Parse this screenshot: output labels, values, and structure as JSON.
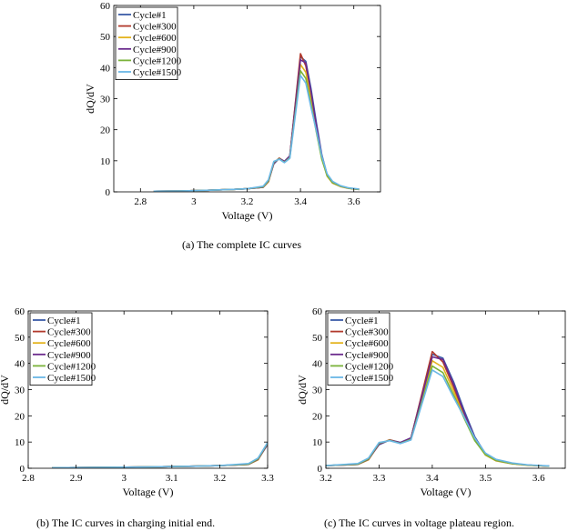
{
  "captions": {
    "a": "(a) The complete IC curves",
    "b": "(b) The IC curves in charging initial end.",
    "c": "(c) The IC curves in voltage plateau region."
  },
  "chart_data": [
    {
      "id": "a",
      "type": "line",
      "xlabel": "Voltage (V)",
      "ylabel": "dQ/dV",
      "xlim": [
        2.7,
        3.7
      ],
      "ylim": [
        0,
        60
      ],
      "xticks": [
        2.8,
        3,
        3.2,
        3.4,
        3.6
      ],
      "yticks": [
        0,
        10,
        20,
        30,
        40,
        50,
        60
      ],
      "tick_format": "auto",
      "legend": "top-left"
    },
    {
      "id": "b",
      "type": "line",
      "xlabel": "Voltage (V)",
      "ylabel": "dQ/dV",
      "xlim": [
        2.8,
        3.3
      ],
      "ylim": [
        0,
        60
      ],
      "xticks": [
        2.8,
        2.9,
        3,
        3.1,
        3.2,
        3.3
      ],
      "yticks": [
        0,
        10,
        20,
        30,
        40,
        50,
        60
      ],
      "tick_format": "auto",
      "legend": "top-left"
    },
    {
      "id": "c",
      "type": "line",
      "xlabel": "Voltage (V)",
      "ylabel": "dQ/dV",
      "xlim": [
        3.2,
        3.65
      ],
      "ylim": [
        0,
        60
      ],
      "xticks": [
        3.2,
        3.3,
        3.4,
        3.5,
        3.6
      ],
      "yticks": [
        0,
        10,
        20,
        30,
        40,
        50,
        60
      ],
      "tick_format": "fixed1",
      "legend": "top-left"
    }
  ],
  "series": [
    {
      "name": "Cycle#1",
      "color": "#3b5ba8",
      "x": [
        2.85,
        2.95,
        3.05,
        3.15,
        3.2,
        3.26,
        3.28,
        3.3,
        3.32,
        3.34,
        3.36,
        3.4,
        3.42,
        3.44,
        3.46,
        3.48,
        3.5,
        3.52,
        3.55,
        3.58,
        3.62
      ],
      "y": [
        0.2,
        0.3,
        0.5,
        0.8,
        1.0,
        1.5,
        3.5,
        9.0,
        10.8,
        9.8,
        11.5,
        43.5,
        42.0,
        33.0,
        22.0,
        12.0,
        5.5,
        3.0,
        1.8,
        1.2,
        0.8
      ]
    },
    {
      "name": "Cycle#300",
      "color": "#b23a2c",
      "x": [
        2.85,
        2.95,
        3.05,
        3.15,
        3.2,
        3.26,
        3.28,
        3.3,
        3.32,
        3.34,
        3.36,
        3.4,
        3.42,
        3.44,
        3.46,
        3.48,
        3.5,
        3.52,
        3.55,
        3.58,
        3.62
      ],
      "y": [
        0.2,
        0.3,
        0.5,
        0.8,
        1.0,
        1.5,
        3.3,
        9.2,
        10.9,
        9.7,
        11.4,
        44.5,
        40.5,
        31.0,
        20.0,
        11.0,
        5.2,
        2.9,
        1.8,
        1.2,
        0.8
      ]
    },
    {
      "name": "Cycle#600",
      "color": "#e3b21b",
      "x": [
        2.85,
        2.95,
        3.05,
        3.15,
        3.2,
        3.26,
        3.28,
        3.3,
        3.32,
        3.34,
        3.36,
        3.4,
        3.42,
        3.44,
        3.46,
        3.48,
        3.5,
        3.52,
        3.55,
        3.58,
        3.62
      ],
      "y": [
        0.2,
        0.3,
        0.5,
        0.8,
        1.0,
        1.5,
        3.2,
        9.4,
        10.8,
        9.6,
        11.2,
        41.0,
        38.5,
        29.5,
        19.5,
        10.8,
        5.0,
        2.8,
        1.7,
        1.1,
        0.8
      ]
    },
    {
      "name": "Cycle#900",
      "color": "#6a2a8c",
      "x": [
        2.85,
        2.95,
        3.05,
        3.15,
        3.2,
        3.26,
        3.28,
        3.3,
        3.32,
        3.34,
        3.36,
        3.4,
        3.42,
        3.44,
        3.46,
        3.48,
        3.5,
        3.52,
        3.55,
        3.58,
        3.62
      ],
      "y": [
        0.2,
        0.3,
        0.5,
        0.8,
        1.0,
        1.5,
        3.4,
        9.3,
        10.7,
        9.8,
        11.6,
        42.5,
        41.5,
        32.0,
        21.0,
        11.5,
        5.4,
        3.0,
        1.8,
        1.2,
        0.8
      ]
    },
    {
      "name": "Cycle#1200",
      "color": "#7ab33a",
      "x": [
        2.85,
        2.95,
        3.05,
        3.15,
        3.2,
        3.26,
        3.28,
        3.3,
        3.32,
        3.34,
        3.36,
        3.4,
        3.42,
        3.44,
        3.46,
        3.48,
        3.5,
        3.52,
        3.55,
        3.58,
        3.62
      ],
      "y": [
        0.2,
        0.3,
        0.5,
        0.8,
        1.0,
        1.6,
        3.6,
        9.6,
        10.6,
        9.5,
        11.0,
        39.0,
        36.5,
        28.0,
        19.0,
        10.5,
        5.2,
        3.0,
        1.8,
        1.2,
        0.8
      ]
    },
    {
      "name": "Cycle#1500",
      "color": "#6ab7e6",
      "x": [
        2.85,
        2.95,
        3.05,
        3.15,
        3.2,
        3.26,
        3.28,
        3.3,
        3.32,
        3.34,
        3.36,
        3.4,
        3.42,
        3.44,
        3.46,
        3.48,
        3.5,
        3.52,
        3.55,
        3.58,
        3.62
      ],
      "y": [
        0.2,
        0.3,
        0.5,
        0.8,
        1.0,
        1.8,
        3.9,
        9.8,
        10.5,
        9.4,
        10.8,
        37.5,
        35.0,
        27.0,
        19.5,
        11.5,
        5.8,
        3.4,
        2.0,
        1.3,
        0.9
      ]
    }
  ]
}
